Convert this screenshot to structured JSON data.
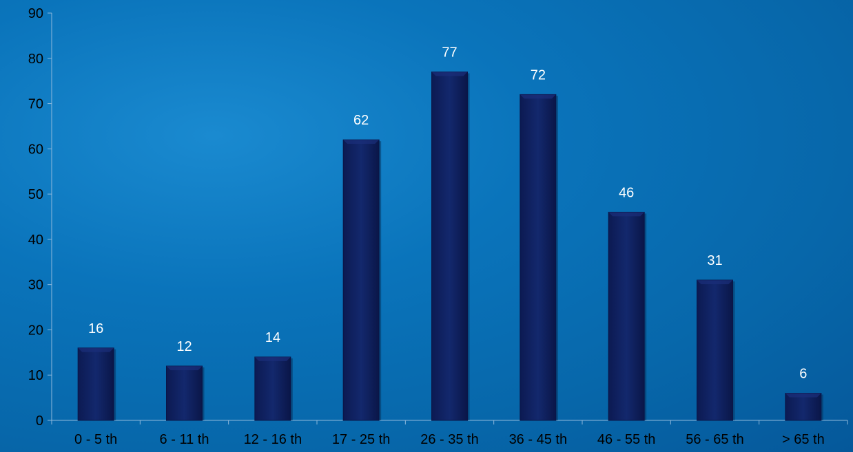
{
  "chart_data": {
    "type": "bar",
    "categories": [
      "0 - 5 th",
      "6 - 11 th",
      "12 - 16 th",
      "17 - 25 th",
      "26 - 35 th",
      "36 - 45 th",
      "46 - 55 th",
      "56 - 65 th",
      "> 65 th"
    ],
    "values": [
      16,
      12,
      14,
      62,
      77,
      72,
      46,
      31,
      6
    ],
    "ylim": [
      0,
      90
    ],
    "yticks": [
      0,
      10,
      20,
      30,
      40,
      50,
      60,
      70,
      80,
      90
    ],
    "grid": false,
    "legend": "none",
    "colors": {
      "background": "#0a74bb",
      "bar": "#0f1f5e",
      "bar_highlight": "#1b2f7a",
      "axis": "#8fb9dc",
      "data_label": "#ffffff",
      "tick_label": "#000000"
    }
  }
}
